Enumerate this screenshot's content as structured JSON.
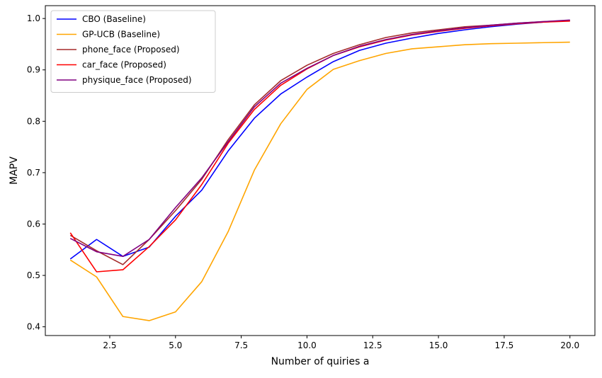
{
  "chart_data": {
    "type": "line",
    "title": "",
    "xlabel": "Number of quiries a",
    "ylabel": "MAPV",
    "xlim": [
      0.05,
      20.95
    ],
    "ylim": [
      0.383,
      1.025
    ],
    "xticks": [
      2.5,
      5.0,
      7.5,
      10.0,
      12.5,
      15.0,
      17.5,
      20.0
    ],
    "xtick_labels": [
      "2.5",
      "5.0",
      "7.5",
      "10.0",
      "12.5",
      "15.0",
      "17.5",
      "20.0"
    ],
    "yticks": [
      0.4,
      0.5,
      0.6,
      0.7,
      0.8,
      0.9,
      1.0
    ],
    "ytick_labels": [
      "0.4",
      "0.5",
      "0.6",
      "0.7",
      "0.8",
      "0.9",
      "1.0"
    ],
    "grid": false,
    "legend_position": "top-left",
    "x": [
      1,
      2,
      3,
      4,
      5,
      6,
      7,
      8,
      9,
      10,
      11,
      12,
      13,
      14,
      15,
      16,
      17,
      18,
      19,
      20
    ],
    "series": [
      {
        "name": "CBO (Baseline)",
        "color": "#0000ff",
        "values": [
          0.532,
          0.57,
          0.537,
          0.555,
          0.615,
          0.666,
          0.742,
          0.806,
          0.853,
          0.886,
          0.916,
          0.938,
          0.952,
          0.962,
          0.971,
          0.978,
          0.984,
          0.989,
          0.993,
          0.996
        ]
      },
      {
        "name": "GP-UCB (Baseline)",
        "color": "#ffa500",
        "values": [
          0.53,
          0.497,
          0.42,
          0.412,
          0.429,
          0.488,
          0.585,
          0.705,
          0.795,
          0.862,
          0.901,
          0.918,
          0.932,
          0.941,
          0.945,
          0.949,
          0.951,
          0.952,
          0.953,
          0.954
        ]
      },
      {
        "name": "phone_face (Proposed)",
        "color": "#a52a2a",
        "values": [
          0.578,
          0.548,
          0.521,
          0.57,
          0.626,
          0.687,
          0.764,
          0.832,
          0.879,
          0.909,
          0.932,
          0.949,
          0.963,
          0.972,
          0.978,
          0.984,
          0.987,
          0.991,
          0.994,
          0.996
        ]
      },
      {
        "name": "car_face (Proposed)",
        "color": "#ff0000",
        "values": [
          0.583,
          0.507,
          0.511,
          0.556,
          0.608,
          0.677,
          0.757,
          0.823,
          0.87,
          0.902,
          0.928,
          0.945,
          0.958,
          0.968,
          0.975,
          0.981,
          0.986,
          0.99,
          0.993,
          0.995
        ]
      },
      {
        "name": "physique_face (Proposed)",
        "color": "#800080",
        "values": [
          0.572,
          0.546,
          0.537,
          0.57,
          0.632,
          0.69,
          0.76,
          0.828,
          0.874,
          0.903,
          0.928,
          0.946,
          0.959,
          0.969,
          0.976,
          0.982,
          0.987,
          0.991,
          0.994,
          0.997
        ]
      }
    ]
  }
}
